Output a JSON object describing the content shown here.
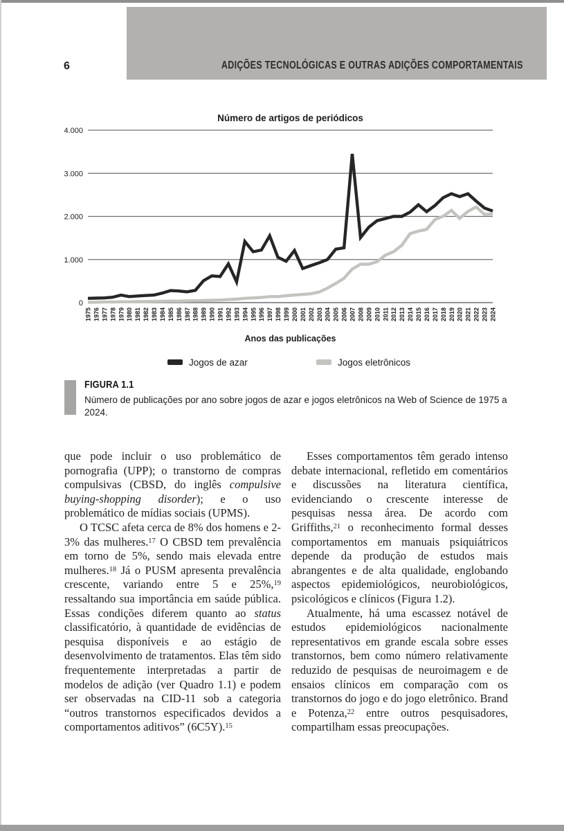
{
  "page": {
    "number": "6",
    "header_banner": "ADIÇÕES TECNOLÓGICAS E OUTRAS ADIÇÕES COMPORTAMENTAIS"
  },
  "chart_data": {
    "type": "line",
    "title": "Número de artigos de periódicos",
    "xlabel": "Anos das publicações",
    "ylabel": "",
    "ylim": [
      0,
      4000
    ],
    "ytick_values": [
      0,
      1000,
      2000,
      3000,
      4000
    ],
    "ytick_labels": [
      "0",
      "1.000",
      "2.000",
      "3.000",
      "4.000"
    ],
    "grid": true,
    "legend_position": "bottom",
    "x": [
      1975,
      1976,
      1977,
      1978,
      1979,
      1980,
      1981,
      1982,
      1983,
      1984,
      1985,
      1986,
      1987,
      1988,
      1989,
      1990,
      1991,
      1992,
      1993,
      1994,
      1995,
      1996,
      1997,
      1998,
      1999,
      2000,
      2001,
      2002,
      2003,
      2004,
      2005,
      2006,
      2007,
      2008,
      2009,
      2010,
      2011,
      2012,
      2013,
      2014,
      2015,
      2016,
      2017,
      2018,
      2019,
      2020,
      2021,
      2022,
      2023,
      2024
    ],
    "series": [
      {
        "name": "Jogos de azar",
        "color": "#262626",
        "values": [
          100,
          105,
          110,
          125,
          175,
          140,
          155,
          165,
          175,
          220,
          280,
          270,
          250,
          285,
          510,
          620,
          605,
          900,
          480,
          1420,
          1180,
          1220,
          1550,
          1050,
          960,
          1210,
          790,
          860,
          925,
          1000,
          1240,
          1270,
          3450,
          1510,
          1750,
          1900,
          1950,
          2000,
          2000,
          2100,
          2270,
          2110,
          2250,
          2435,
          2525,
          2460,
          2525,
          2355,
          2195,
          2125
        ]
      },
      {
        "name": "Jogos eletrônicos",
        "color": "#c3c3c0",
        "values": [
          10,
          10,
          15,
          15,
          20,
          20,
          25,
          25,
          30,
          30,
          35,
          35,
          40,
          45,
          50,
          55,
          60,
          70,
          80,
          100,
          110,
          120,
          140,
          140,
          160,
          175,
          190,
          205,
          245,
          335,
          445,
          565,
          780,
          890,
          890,
          950,
          1100,
          1180,
          1330,
          1600,
          1660,
          1700,
          1925,
          2005,
          2140,
          1955,
          2115,
          2220,
          2045,
          2060
        ]
      }
    ]
  },
  "figure": {
    "label": "FIGURA 1.1",
    "caption": "Número de publicações por ano sobre jogos de azar e jogos eletrônicos na Web of Science de 1975 a 2024."
  },
  "body": {
    "left_column": [
      {
        "indent": false,
        "segments": [
          {
            "style": "normal",
            "text": "que pode incluir o uso problemático de pornografia (UPP); o transtorno de compras compulsivas (CBSD, do inglês "
          },
          {
            "style": "italic",
            "text": "compulsive buying-shopping disorder"
          },
          {
            "style": "normal",
            "text": "); e o uso problemático de mídias sociais (UPMS)."
          }
        ]
      },
      {
        "indent": true,
        "segments": [
          {
            "style": "normal",
            "text": "O TCSC afeta cerca de 8% dos homens e 2-3% das mulheres."
          },
          {
            "style": "sup",
            "text": "17"
          },
          {
            "style": "normal",
            "text": " O CBSD tem prevalência em torno de 5%, sendo mais elevada entre mulheres."
          },
          {
            "style": "sup",
            "text": "18"
          },
          {
            "style": "normal",
            "text": " Já o PUSM apresenta prevalência crescente, variando entre 5 e 25%,"
          },
          {
            "style": "sup",
            "text": "19"
          },
          {
            "style": "normal",
            "text": " ressaltando sua importância em saúde pública. Essas condições diferem quanto ao "
          },
          {
            "style": "italic",
            "text": "status"
          },
          {
            "style": "normal",
            "text": " classificatório, à quantidade de evidências de pesquisa disponíveis e ao estágio de desenvolvimento de tratamentos. Elas têm sido frequentemente interpretadas a partir de modelos de adição (ver Quadro 1.1) e podem ser observadas na CID-11 sob a categoria “outros transtornos especificados devidos a comportamentos aditivos” (6C5Y)."
          },
          {
            "style": "sup",
            "text": "15"
          }
        ]
      }
    ],
    "right_column": [
      {
        "indent": true,
        "segments": [
          {
            "style": "normal",
            "text": "Esses comportamentos têm gerado intenso debate internacional, refletido em comentários e discussões na literatura científica, evidenciando o crescente interesse de pesquisas nessa área. De acordo com Griffiths,"
          },
          {
            "style": "sup",
            "text": "21"
          },
          {
            "style": "normal",
            "text": " o reconhecimento formal desses comportamentos em manuais psiquiátricos depende da produção de estudos mais abrangentes e de alta qualidade, englobando aspectos epidemiológicos, neurobiológicos, psicológicos e clínicos (Figura 1.2)."
          }
        ]
      },
      {
        "indent": true,
        "segments": [
          {
            "style": "normal",
            "text": "Atualmente, há uma escassez notável de estudos epidemiológicos nacionalmente representativos em grande escala sobre esses transtornos, bem como número relativamente reduzido de pesquisas de neuroimagem e de ensaios clínicos em comparação com os transtornos do jogo e do jogo eletrônico. Brand e Potenza,"
          },
          {
            "style": "sup",
            "text": "22"
          },
          {
            "style": "normal",
            "text": " entre outros pesquisadores, compartilham essas preocupações."
          }
        ]
      }
    ]
  }
}
